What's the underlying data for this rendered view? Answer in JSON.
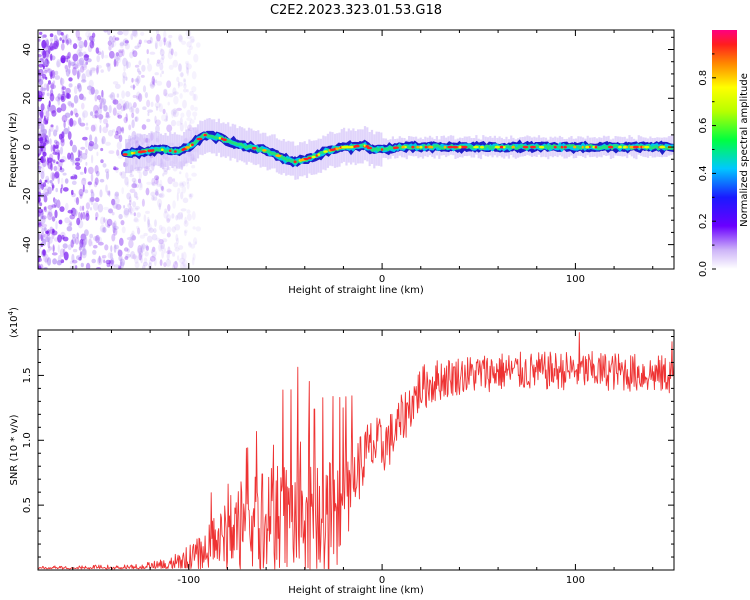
{
  "title": "C2E2.2023.323.01.53.G18",
  "colors": {
    "snr_line": "#ee3333",
    "axis": "#000000",
    "scatter": "#7a1cf0",
    "ridge_core": "#ff2020",
    "ridge_mid": "#22e07a",
    "ridge_edge": "#1e1ec8"
  },
  "chart_data": [
    {
      "type": "heatmap",
      "name": "spectrogram",
      "xlabel": "Height of straight line (km)",
      "ylabel": "Frequency (Hz)",
      "xlim": [
        -178,
        151
      ],
      "ylim": [
        -50,
        48
      ],
      "xticks": [
        -100,
        0,
        100
      ],
      "xtick_labels": [
        "-100",
        "0",
        "100"
      ],
      "yticks": [
        -40,
        -20,
        0,
        20,
        40
      ],
      "ytick_labels": [
        "-40",
        "-20",
        "0",
        "20",
        "40"
      ],
      "ridge": {
        "x": [
          -133,
          -125,
          -115,
          -105,
          -98,
          -92,
          -85,
          -78,
          -70,
          -62,
          -55,
          -50,
          -45,
          -40,
          -35,
          -30,
          -25,
          -20,
          -15,
          -10,
          -5,
          0,
          10,
          20,
          40,
          60,
          80,
          100,
          120,
          151
        ],
        "freq": [
          -3,
          -2,
          -1,
          -2,
          1,
          5,
          4,
          2,
          0,
          -1,
          -3,
          -5,
          -6,
          -5,
          -4,
          -2,
          -1,
          0,
          0,
          1,
          -1,
          -1,
          0,
          0,
          0,
          0,
          0,
          0,
          0,
          0
        ],
        "start": -133
      },
      "noise_region": [
        -178,
        -95
      ],
      "colorbar": {
        "label": "Normalized spectral amplitude",
        "range": [
          0,
          1
        ],
        "ticks": [
          0,
          0.2,
          0.4,
          0.6,
          0.8
        ],
        "tick_labels": [
          "0.0",
          "0.2",
          "0.4",
          "0.6",
          "0.8"
        ]
      }
    },
    {
      "type": "line",
      "name": "snr",
      "xlabel": "Height of straight line (km)",
      "ylabel": "SNR (10 * v/v)",
      "scale_label": "(x10",
      "scale_exponent": "4",
      "scale_close": ")",
      "xlim": [
        -178,
        151
      ],
      "ylim": [
        0,
        18500
      ],
      "xticks": [
        -100,
        0,
        100
      ],
      "xtick_labels": [
        "-100",
        "0",
        "100"
      ],
      "yticks": [
        5000,
        10000,
        15000
      ],
      "ytick_labels": [
        "0.5",
        "1.0",
        "1.5"
      ],
      "series": [
        {
          "name": "SNR",
          "envelope_x": [
            -178,
            -130,
            -110,
            -95,
            -85,
            -75,
            -60,
            -45,
            -30,
            -25,
            -20,
            -15,
            -10,
            -5,
            0,
            5,
            10,
            15,
            20,
            30,
            40,
            60,
            80,
            100,
            120,
            151
          ],
          "envelope_y": [
            0,
            0,
            300,
            1200,
            2200,
            3000,
            3600,
            3800,
            3600,
            4000,
            5000,
            7000,
            8500,
            9500,
            9500,
            10200,
            11500,
            12800,
            14000,
            14700,
            15000,
            15300,
            15300,
            15400,
            15300,
            15000
          ],
          "noise_amp_x": [
            -178,
            -130,
            -110,
            -95,
            -85,
            -75,
            -60,
            -45,
            -30,
            -25,
            -15,
            0,
            20,
            40,
            151
          ],
          "noise_amp_y": [
            350,
            400,
            600,
            1300,
            2200,
            3200,
            4200,
            5000,
            5000,
            4200,
            2800,
            2200,
            1800,
            1500,
            1500
          ],
          "peaks": [
            {
              "x": -73,
              "y": 6800
            },
            {
              "x": -62,
              "y": 7400
            },
            {
              "x": -47,
              "y": 13900
            },
            {
              "x": -35,
              "y": 12400
            },
            {
              "x": -22,
              "y": 13300
            },
            {
              "x": 102,
              "y": 18300
            },
            {
              "x": 150,
              "y": 17600
            }
          ]
        }
      ]
    }
  ]
}
